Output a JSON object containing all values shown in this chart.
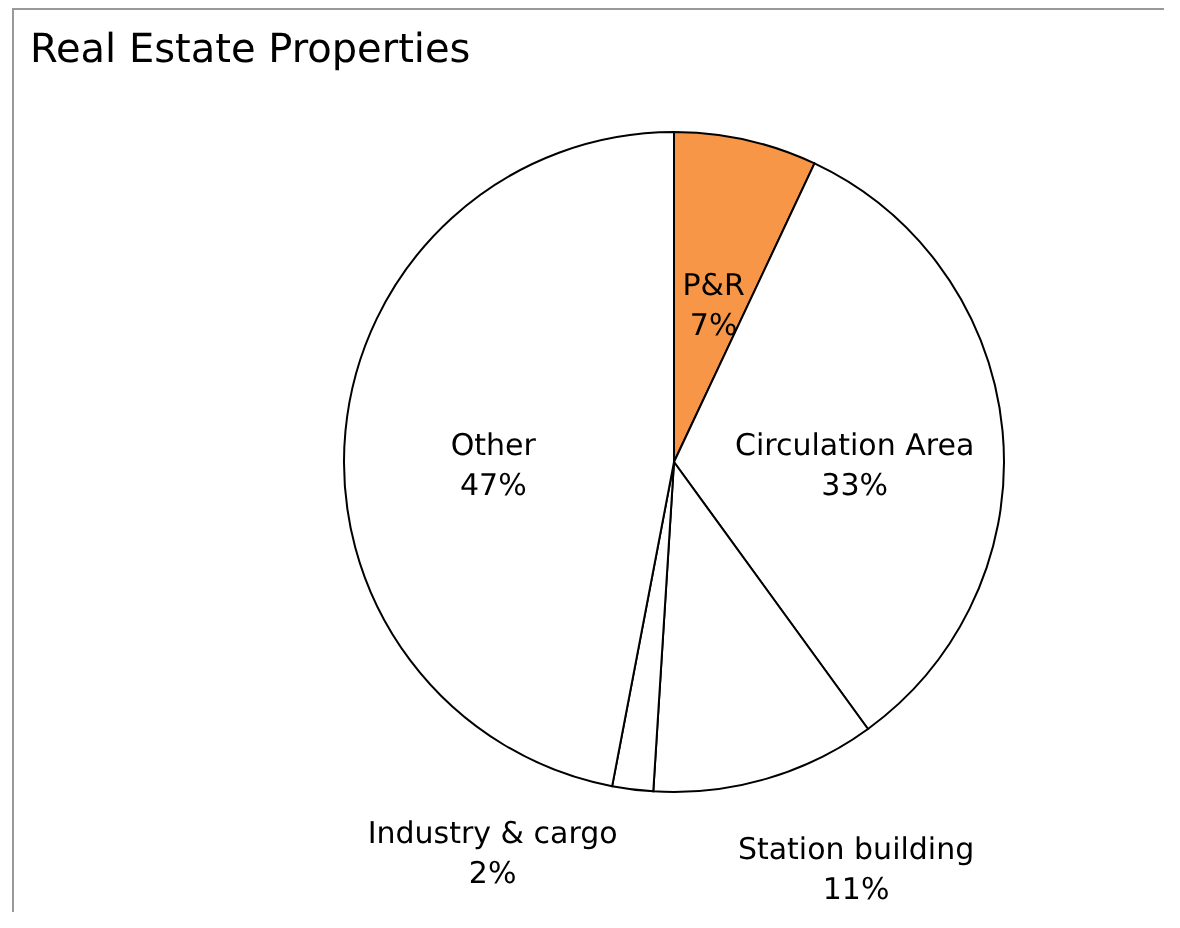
{
  "chart_data": {
    "type": "pie",
    "title": "Real Estate Properties",
    "categories": [
      "P&R",
      "Circulation Area",
      "Station building",
      "Industry & cargo",
      "Other"
    ],
    "values": [
      7,
      33,
      11,
      2,
      47
    ],
    "colors": [
      "#f79646",
      "#ffffff",
      "#ffffff",
      "#ffffff",
      "#ffffff"
    ],
    "value_labels": [
      "7%",
      "33%",
      "11%",
      "2%",
      "47%"
    ]
  }
}
